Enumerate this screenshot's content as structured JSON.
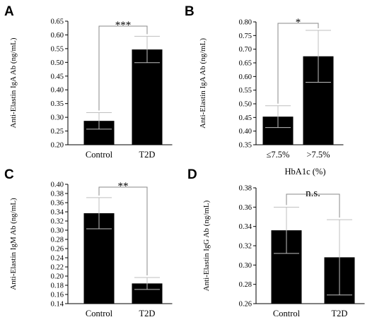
{
  "chart_data": [
    {
      "panel": "A",
      "type": "bar",
      "categories": [
        "Control",
        "T2D"
      ],
      "values": [
        0.287,
        0.547
      ],
      "errors": [
        0.03,
        0.048
      ],
      "ylabel": "Anti-Elastin IgA Ab (ng/mL)",
      "xlabel": "",
      "ylim": [
        0.2,
        0.65
      ],
      "yticks": [
        "0.20",
        "0.25",
        "0.30",
        "0.35",
        "0.40",
        "0.45",
        "0.50",
        "0.55",
        "0.60",
        "0.65"
      ],
      "significance": "***",
      "bar_color": "#000000",
      "error_color": "#bfbfbf"
    },
    {
      "panel": "B",
      "type": "bar",
      "categories": [
        "≤7.5%",
        ">7.5%"
      ],
      "values": [
        0.453,
        0.674
      ],
      "errors": [
        0.04,
        0.095
      ],
      "ylabel": "Anti-Elastin IgA Ab (ng/mL)",
      "xlabel": "HbA1c (%)",
      "ylim": [
        0.35,
        0.8
      ],
      "yticks": [
        "0.35",
        "0.40",
        "0.45",
        "0.50",
        "0.55",
        "0.60",
        "0.65",
        "0.70",
        "0.75",
        "0.80"
      ],
      "significance": "*",
      "bar_color": "#000000",
      "error_color": "#bfbfbf"
    },
    {
      "panel": "C",
      "type": "bar",
      "categories": [
        "Control",
        "T2D"
      ],
      "values": [
        0.337,
        0.184
      ],
      "errors": [
        0.034,
        0.013
      ],
      "ylabel": "Anti-Elastin IgM Ab (ng/mL)",
      "xlabel": "",
      "ylim": [
        0.14,
        0.4
      ],
      "yticks": [
        "0.14",
        "0.16",
        "0.18",
        "0.20",
        "0.22",
        "0.24",
        "0.26",
        "0.28",
        "0.30",
        "0.32",
        "0.34",
        "0.36",
        "0.38",
        "0.40"
      ],
      "significance": "**",
      "bar_color": "#000000",
      "error_color": "#bfbfbf"
    },
    {
      "panel": "D",
      "type": "bar",
      "categories": [
        "Control",
        "T2D"
      ],
      "values": [
        0.336,
        0.308
      ],
      "errors": [
        0.024,
        0.039
      ],
      "ylabel": "Anti-Elastin IgG Ab (ng/mL)",
      "xlabel": "",
      "ylim": [
        0.26,
        0.38
      ],
      "yticks": [
        "0.26",
        "0.28",
        "0.30",
        "0.32",
        "0.34",
        "0.36",
        "0.38"
      ],
      "significance": "n.s.",
      "bar_color": "#000000",
      "error_color": "#bfbfbf"
    }
  ]
}
